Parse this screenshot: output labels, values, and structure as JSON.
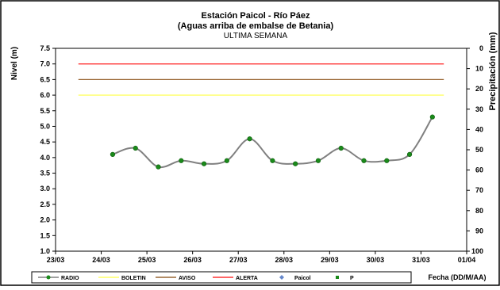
{
  "chart_data": {
    "type": "line",
    "title": "Estación Paicol  - Río Páez",
    "subtitle": "(Aguas arriba de embalse de Betania)",
    "period": "ULTIMA SEMANA",
    "ylabel": "Nivel (m)",
    "y2label": "Precipitación (mm)",
    "xlabel": "Fecha  (DD/M/AA)",
    "ylim": [
      1.0,
      7.5
    ],
    "y2lim": [
      0,
      100
    ],
    "y_ticks": [
      "1.0",
      "1.5",
      "2.0",
      "2.5",
      "3.0",
      "3.5",
      "4.0",
      "4.5",
      "5.0",
      "5.5",
      "6.0",
      "6.5",
      "7.0",
      "7.5"
    ],
    "y2_ticks": [
      "0",
      "10",
      "20",
      "30",
      "40",
      "50",
      "60",
      "70",
      "80",
      "90",
      "100"
    ],
    "x_ticks": [
      "23/03",
      "24/03",
      "25/03",
      "26/03",
      "27/03",
      "28/03",
      "29/03",
      "30/03",
      "31/03",
      "01/04"
    ],
    "grid": false,
    "legend_position": "bottom",
    "thresholds": [
      {
        "name": "BOLETIN",
        "value": 6.0,
        "color": "#ffff66"
      },
      {
        "name": "AVISO",
        "value": 6.5,
        "color": "#996633"
      },
      {
        "name": "ALERTA",
        "value": 7.0,
        "color": "#ff3333"
      }
    ],
    "series": [
      {
        "name": "RADIO",
        "color": "#808080",
        "marker_color": "#1a8a1a",
        "x": [
          1.25,
          1.75,
          2.25,
          2.75,
          3.25,
          3.75,
          4.25,
          4.75,
          5.25,
          5.75,
          6.25,
          6.75,
          7.25,
          7.75,
          8.25
        ],
        "values": [
          4.1,
          4.3,
          3.7,
          3.9,
          3.8,
          3.9,
          4.6,
          3.9,
          3.8,
          3.9,
          4.3,
          3.9,
          3.9,
          4.1,
          5.3
        ]
      }
    ],
    "legend": [
      {
        "name": "RADIO",
        "kind": "line-marker",
        "color": "#808080",
        "marker_color": "#1a8a1a"
      },
      {
        "name": "BOLETIN",
        "kind": "line",
        "color": "#ffff66"
      },
      {
        "name": "AVISO",
        "kind": "line",
        "color": "#996633"
      },
      {
        "name": "ALERTA",
        "kind": "line",
        "color": "#ff3333"
      },
      {
        "name": "Paicol",
        "kind": "diamond",
        "color": "#6688cc"
      },
      {
        "name": "P",
        "kind": "square",
        "color": "#1a8a1a"
      }
    ]
  }
}
